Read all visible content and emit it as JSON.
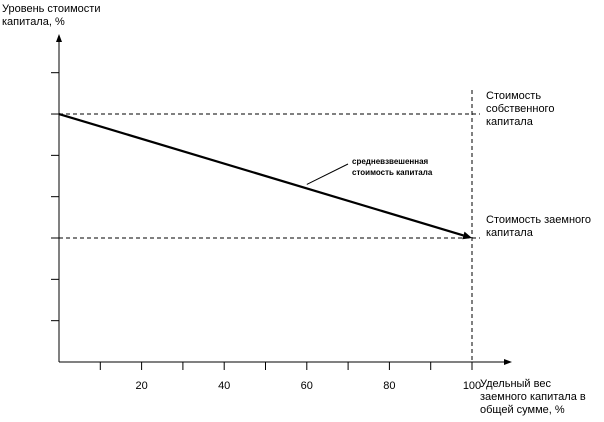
{
  "chart_data": {
    "type": "line",
    "ylabel": "Уровень стоимости капитала, %",
    "xlabel": "Удельный вес заемного капитала в общей сумме, %",
    "xlim": [
      0,
      105
    ],
    "ylim": [
      0,
      7.5
    ],
    "xticks": [
      {
        "value": 10,
        "label": ""
      },
      {
        "value": 20,
        "label": "20"
      },
      {
        "value": 30,
        "label": ""
      },
      {
        "value": 40,
        "label": "40"
      },
      {
        "value": 50,
        "label": ""
      },
      {
        "value": 60,
        "label": "60"
      },
      {
        "value": 70,
        "label": ""
      },
      {
        "value": 80,
        "label": "80"
      },
      {
        "value": 90,
        "label": ""
      },
      {
        "value": 100,
        "label": "100"
      }
    ],
    "yticks": [
      1,
      2,
      3,
      4,
      5,
      6,
      7
    ],
    "series": [
      {
        "name": "средневзвешенная стоимость капитала",
        "x": [
          0,
          100
        ],
        "y": [
          6,
          3
        ]
      }
    ],
    "reference_lines": [
      {
        "orientation": "horizontal",
        "value": 6,
        "style": "dashed",
        "label": "Стоимость собственного капитала"
      },
      {
        "orientation": "horizontal",
        "value": 3,
        "style": "dashed",
        "label": "Стоимость заемного капитала"
      },
      {
        "orientation": "vertical",
        "value": 100,
        "style": "dashed",
        "label": ""
      }
    ],
    "annotation": {
      "text": "средневзвешенная стоимость капитала",
      "x": 60,
      "y": 4.2
    }
  }
}
